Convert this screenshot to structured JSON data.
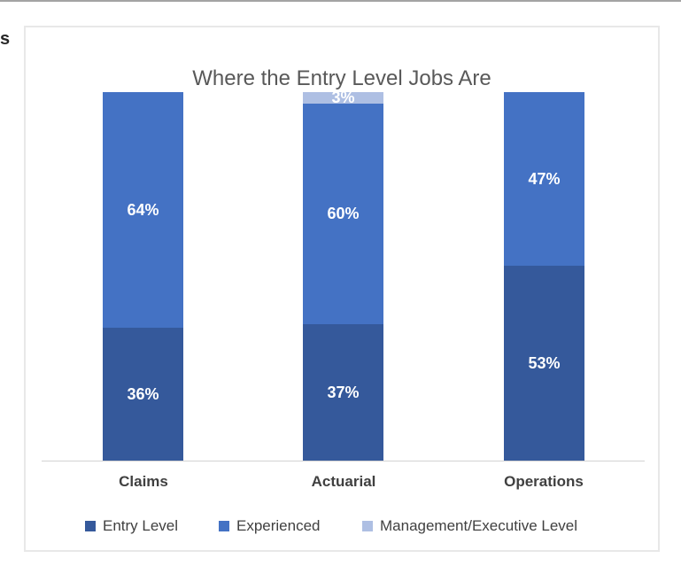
{
  "page": {
    "edge_text_fragment": "s"
  },
  "chart": {
    "title": "Where the Entry Level Jobs Are",
    "colors": {
      "entry_level": "#35599b",
      "experienced": "#4472c4",
      "management": "#aebfe3"
    }
  },
  "chart_data": {
    "type": "bar",
    "stacked": true,
    "orientation": "vertical",
    "title": "Where the Entry Level Jobs Are",
    "categories": [
      "Claims",
      "Actuarial",
      "Operations"
    ],
    "series": [
      {
        "name": "Entry Level",
        "color": "#35599b",
        "values": [
          36,
          37,
          53
        ]
      },
      {
        "name": "Experienced",
        "color": "#4472c4",
        "values": [
          64,
          60,
          47
        ]
      },
      {
        "name": "Management/Executive Level",
        "color": "#aebfe3",
        "values": [
          0,
          3,
          0
        ]
      }
    ],
    "data_labels": [
      [
        "36%",
        "64%",
        ""
      ],
      [
        "37%",
        "60%",
        "3%"
      ],
      [
        "53%",
        "47%",
        ""
      ]
    ],
    "value_format": "percent",
    "xlabel": "",
    "ylabel": "",
    "ylim": [
      0,
      100
    ],
    "grid": false,
    "legend_position": "bottom",
    "legend": [
      {
        "label": "Entry Level",
        "color": "#35599b"
      },
      {
        "label": "Experienced",
        "color": "#4472c4"
      },
      {
        "label": "Management/Executive Level",
        "color": "#aebfe3"
      }
    ]
  }
}
